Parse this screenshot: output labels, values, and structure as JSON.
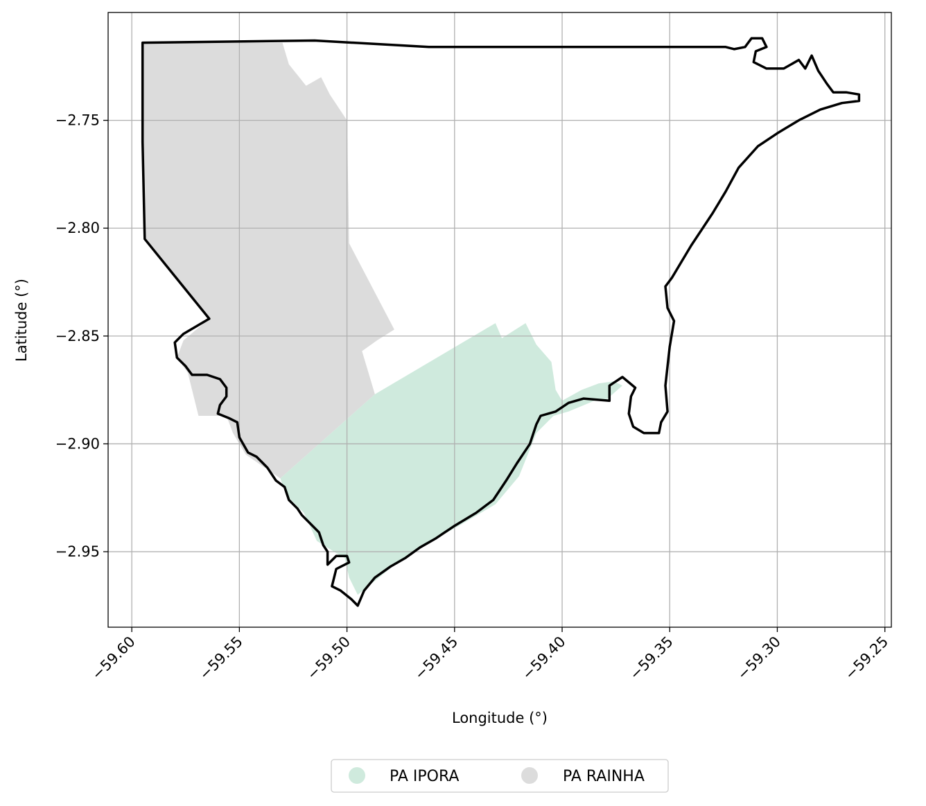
{
  "map": {
    "xlabel": "Longitude (°)",
    "ylabel": "Latitude (°)",
    "xlim": [
      -59.611,
      -59.247
    ],
    "ylim": [
      -2.985,
      -2.7
    ],
    "grid": true,
    "x_ticks": [
      {
        "value": -59.6,
        "label": "−59.60"
      },
      {
        "value": -59.55,
        "label": "−59.55"
      },
      {
        "value": -59.5,
        "label": "−59.50"
      },
      {
        "value": -59.45,
        "label": "−59.45"
      },
      {
        "value": -59.4,
        "label": "−59.40"
      },
      {
        "value": -59.35,
        "label": "−59.35"
      },
      {
        "value": -59.3,
        "label": "−59.30"
      },
      {
        "value": -59.25,
        "label": "−59.25"
      }
    ],
    "y_ticks": [
      {
        "value": -2.75,
        "label": "−2.75"
      },
      {
        "value": -2.8,
        "label": "−2.80"
      },
      {
        "value": -2.85,
        "label": "−2.85"
      },
      {
        "value": -2.9,
        "label": "−2.90"
      },
      {
        "value": -2.95,
        "label": "−2.95"
      }
    ],
    "legend_position": "bottom-center",
    "layers": [
      {
        "name": "PA RAINHA",
        "color": "#dcdcdc",
        "polygon": [
          [
            -59.595,
            -2.714
          ],
          [
            -59.53,
            -2.714
          ],
          [
            -59.527,
            -2.724
          ],
          [
            -59.519,
            -2.734
          ],
          [
            -59.512,
            -2.73
          ],
          [
            -59.508,
            -2.738
          ],
          [
            -59.5,
            -2.75
          ],
          [
            -59.499,
            -2.807
          ],
          [
            -59.478,
            -2.847
          ],
          [
            -59.486,
            -2.852
          ],
          [
            -59.493,
            -2.857
          ],
          [
            -59.487,
            -2.877
          ],
          [
            -59.531,
            -2.916
          ],
          [
            -59.547,
            -2.905
          ],
          [
            -59.553,
            -2.895
          ],
          [
            -59.556,
            -2.887
          ],
          [
            -59.569,
            -2.887
          ],
          [
            -59.574,
            -2.867
          ],
          [
            -59.579,
            -2.86
          ],
          [
            -59.576,
            -2.852
          ],
          [
            -59.564,
            -2.842
          ],
          [
            -59.594,
            -2.805
          ],
          [
            -59.595,
            -2.76
          ]
        ]
      },
      {
        "name": "PA IPORA",
        "color": "#cfeadd",
        "polygon": [
          [
            -59.531,
            -2.916
          ],
          [
            -59.487,
            -2.877
          ],
          [
            -59.431,
            -2.844
          ],
          [
            -59.428,
            -2.851
          ],
          [
            -59.417,
            -2.844
          ],
          [
            -59.412,
            -2.854
          ],
          [
            -59.405,
            -2.862
          ],
          [
            -59.403,
            -2.875
          ],
          [
            -59.4,
            -2.88
          ],
          [
            -59.391,
            -2.875
          ],
          [
            -59.383,
            -2.872
          ],
          [
            -59.376,
            -2.871
          ],
          [
            -59.372,
            -2.873
          ],
          [
            -59.38,
            -2.88
          ],
          [
            -59.385,
            -2.88
          ],
          [
            -59.397,
            -2.885
          ],
          [
            -59.404,
            -2.887
          ],
          [
            -59.412,
            -2.895
          ],
          [
            -59.42,
            -2.915
          ],
          [
            -59.431,
            -2.928
          ],
          [
            -59.448,
            -2.938
          ],
          [
            -59.464,
            -2.947
          ],
          [
            -59.479,
            -2.957
          ],
          [
            -59.495,
            -2.97
          ],
          [
            -59.499,
            -2.962
          ],
          [
            -59.501,
            -2.953
          ],
          [
            -59.506,
            -2.95
          ],
          [
            -59.514,
            -2.945
          ],
          [
            -59.52,
            -2.932
          ],
          [
            -59.528,
            -2.924
          ]
        ]
      }
    ],
    "boundary": {
      "color": "#000000",
      "points": [
        [
          -59.595,
          -2.714
        ],
        [
          -59.515,
          -2.713
        ],
        [
          -59.462,
          -2.716
        ],
        [
          -59.4,
          -2.716
        ],
        [
          -59.324,
          -2.716
        ],
        [
          -59.32,
          -2.717
        ],
        [
          -59.315,
          -2.716
        ],
        [
          -59.312,
          -2.712
        ],
        [
          -59.307,
          -2.712
        ],
        [
          -59.305,
          -2.716
        ],
        [
          -59.31,
          -2.718
        ],
        [
          -59.311,
          -2.723
        ],
        [
          -59.305,
          -2.726
        ],
        [
          -59.297,
          -2.726
        ],
        [
          -59.29,
          -2.722
        ],
        [
          -59.287,
          -2.726
        ],
        [
          -59.284,
          -2.72
        ],
        [
          -59.281,
          -2.727
        ],
        [
          -59.277,
          -2.733
        ],
        [
          -59.274,
          -2.737
        ],
        [
          -59.268,
          -2.737
        ],
        [
          -59.262,
          -2.738
        ],
        [
          -59.262,
          -2.741
        ],
        [
          -59.27,
          -2.742
        ],
        [
          -59.28,
          -2.745
        ],
        [
          -59.29,
          -2.75
        ],
        [
          -59.3,
          -2.756
        ],
        [
          -59.309,
          -2.762
        ],
        [
          -59.318,
          -2.772
        ],
        [
          -59.324,
          -2.783
        ],
        [
          -59.33,
          -2.793
        ],
        [
          -59.34,
          -2.808
        ],
        [
          -59.349,
          -2.823
        ],
        [
          -59.352,
          -2.827
        ],
        [
          -59.351,
          -2.837
        ],
        [
          -59.348,
          -2.843
        ],
        [
          -59.35,
          -2.855
        ],
        [
          -59.352,
          -2.873
        ],
        [
          -59.351,
          -2.885
        ],
        [
          -59.354,
          -2.89
        ],
        [
          -59.355,
          -2.895
        ],
        [
          -59.362,
          -2.895
        ],
        [
          -59.367,
          -2.892
        ],
        [
          -59.369,
          -2.886
        ],
        [
          -59.368,
          -2.878
        ],
        [
          -59.366,
          -2.874
        ],
        [
          -59.372,
          -2.869
        ],
        [
          -59.378,
          -2.873
        ],
        [
          -59.378,
          -2.88
        ],
        [
          -59.39,
          -2.879
        ],
        [
          -59.397,
          -2.881
        ],
        [
          -59.403,
          -2.885
        ],
        [
          -59.41,
          -2.887
        ],
        [
          -59.412,
          -2.891
        ],
        [
          -59.415,
          -2.9
        ],
        [
          -59.421,
          -2.909
        ],
        [
          -59.426,
          -2.917
        ],
        [
          -59.432,
          -2.926
        ],
        [
          -59.44,
          -2.932
        ],
        [
          -59.45,
          -2.938
        ],
        [
          -59.459,
          -2.944
        ],
        [
          -59.466,
          -2.948
        ],
        [
          -59.473,
          -2.953
        ],
        [
          -59.48,
          -2.957
        ],
        [
          -59.487,
          -2.962
        ],
        [
          -59.492,
          -2.968
        ],
        [
          -59.495,
          -2.975
        ],
        [
          -59.498,
          -2.972
        ],
        [
          -59.503,
          -2.968
        ],
        [
          -59.507,
          -2.966
        ],
        [
          -59.505,
          -2.958
        ],
        [
          -59.499,
          -2.955
        ],
        [
          -59.5,
          -2.952
        ],
        [
          -59.505,
          -2.952
        ],
        [
          -59.509,
          -2.956
        ],
        [
          -59.509,
          -2.95
        ],
        [
          -59.511,
          -2.947
        ],
        [
          -59.513,
          -2.941
        ],
        [
          -59.517,
          -2.937
        ],
        [
          -59.521,
          -2.933
        ],
        [
          -59.523,
          -2.93
        ],
        [
          -59.527,
          -2.926
        ],
        [
          -59.529,
          -2.92
        ],
        [
          -59.533,
          -2.917
        ],
        [
          -59.537,
          -2.911
        ],
        [
          -59.542,
          -2.906
        ],
        [
          -59.546,
          -2.904
        ],
        [
          -59.55,
          -2.897
        ],
        [
          -59.551,
          -2.89
        ],
        [
          -59.555,
          -2.888
        ],
        [
          -59.56,
          -2.886
        ],
        [
          -59.559,
          -2.882
        ],
        [
          -59.556,
          -2.878
        ],
        [
          -59.556,
          -2.874
        ],
        [
          -59.559,
          -2.87
        ],
        [
          -59.565,
          -2.868
        ],
        [
          -59.572,
          -2.868
        ],
        [
          -59.575,
          -2.864
        ],
        [
          -59.579,
          -2.86
        ],
        [
          -59.58,
          -2.853
        ],
        [
          -59.576,
          -2.849
        ],
        [
          -59.564,
          -2.842
        ],
        [
          -59.594,
          -2.805
        ],
        [
          -59.595,
          -2.76
        ]
      ]
    }
  },
  "legend": {
    "items": [
      {
        "label": "PA IPORA",
        "color": "#cfeadd"
      },
      {
        "label": "PA RAINHA",
        "color": "#dcdcdc"
      }
    ]
  }
}
